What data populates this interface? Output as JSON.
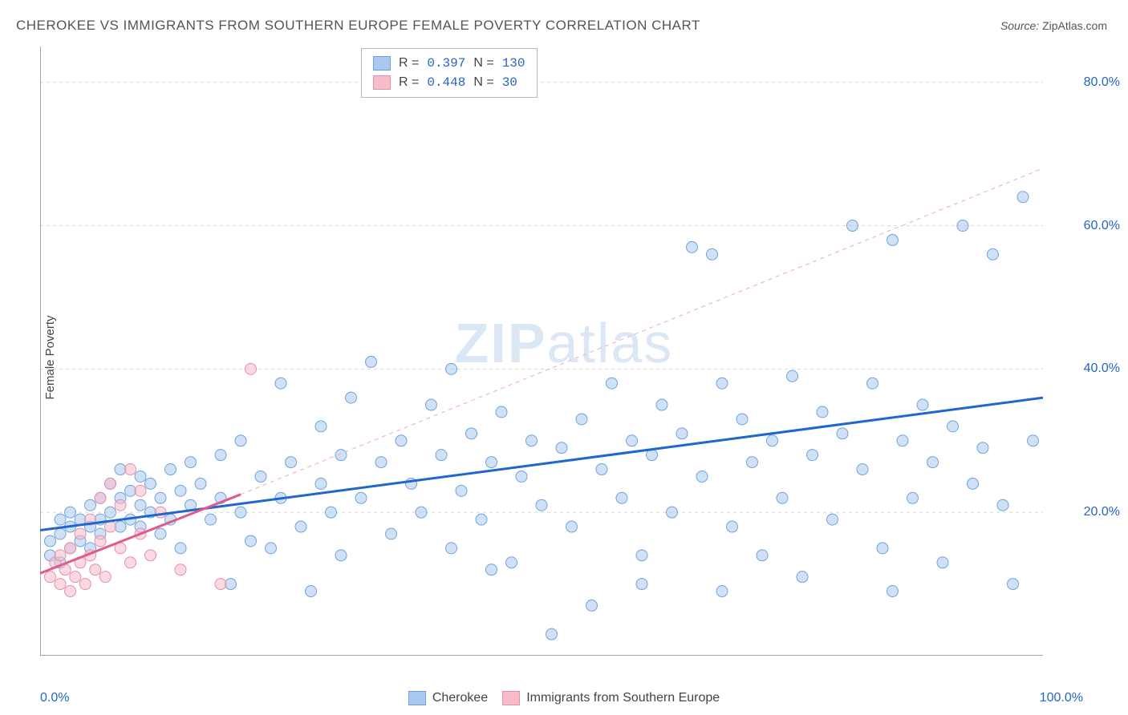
{
  "title": "CHEROKEE VS IMMIGRANTS FROM SOUTHERN EUROPE FEMALE POVERTY CORRELATION CHART",
  "source_label": "Source:",
  "source_value": "ZipAtlas.com",
  "ylabel": "Female Poverty",
  "watermark_a": "ZIP",
  "watermark_b": "atlas",
  "chart": {
    "type": "scatter",
    "xlim": [
      0,
      100
    ],
    "ylim": [
      0,
      85
    ],
    "x_ticks": [
      0,
      10,
      20,
      30,
      40,
      50,
      60,
      70,
      80,
      90,
      100
    ],
    "x_tick_labels_shown": {
      "0": "0.0%",
      "100": "100.0%"
    },
    "y_ticks": [
      20,
      40,
      60,
      80
    ],
    "y_tick_labels": [
      "20.0%",
      "40.0%",
      "60.0%",
      "80.0%"
    ],
    "grid_color": "#d8d8d8",
    "grid_dash": "4 4",
    "axis_color": "#888888",
    "background": "#ffffff",
    "marker_radius": 7,
    "marker_opacity": 0.55,
    "series": [
      {
        "name": "Cherokee",
        "color_fill": "#a9c8ef",
        "color_stroke": "#6fa3dd",
        "r_label": "R =",
        "r_value": "0.397",
        "n_label": "N =",
        "n_value": "130",
        "trend": {
          "x1": 0,
          "y1": 17.5,
          "x2": 100,
          "y2": 36,
          "color": "#1f66d0",
          "width": 3,
          "dash": ""
        },
        "trend_ext": null,
        "points": [
          [
            1,
            14
          ],
          [
            1,
            16
          ],
          [
            2,
            13
          ],
          [
            2,
            17
          ],
          [
            2,
            19
          ],
          [
            3,
            15
          ],
          [
            3,
            18
          ],
          [
            3,
            20
          ],
          [
            4,
            16
          ],
          [
            4,
            19
          ],
          [
            5,
            15
          ],
          [
            5,
            18
          ],
          [
            5,
            21
          ],
          [
            6,
            17
          ],
          [
            6,
            19
          ],
          [
            6,
            22
          ],
          [
            7,
            20
          ],
          [
            7,
            24
          ],
          [
            8,
            18
          ],
          [
            8,
            22
          ],
          [
            8,
            26
          ],
          [
            9,
            19
          ],
          [
            9,
            23
          ],
          [
            10,
            18
          ],
          [
            10,
            21
          ],
          [
            10,
            25
          ],
          [
            11,
            20
          ],
          [
            11,
            24
          ],
          [
            12,
            17
          ],
          [
            12,
            22
          ],
          [
            13,
            19
          ],
          [
            13,
            26
          ],
          [
            14,
            15
          ],
          [
            14,
            23
          ],
          [
            15,
            21
          ],
          [
            15,
            27
          ],
          [
            16,
            24
          ],
          [
            17,
            19
          ],
          [
            18,
            22
          ],
          [
            18,
            28
          ],
          [
            19,
            10
          ],
          [
            20,
            20
          ],
          [
            20,
            30
          ],
          [
            21,
            16
          ],
          [
            22,
            25
          ],
          [
            23,
            15
          ],
          [
            24,
            22
          ],
          [
            24,
            38
          ],
          [
            25,
            27
          ],
          [
            26,
            18
          ],
          [
            27,
            9
          ],
          [
            28,
            24
          ],
          [
            28,
            32
          ],
          [
            29,
            20
          ],
          [
            30,
            14
          ],
          [
            30,
            28
          ],
          [
            31,
            36
          ],
          [
            32,
            22
          ],
          [
            33,
            41
          ],
          [
            34,
            27
          ],
          [
            35,
            17
          ],
          [
            36,
            30
          ],
          [
            37,
            24
          ],
          [
            38,
            20
          ],
          [
            39,
            35
          ],
          [
            40,
            28
          ],
          [
            41,
            15
          ],
          [
            41,
            40
          ],
          [
            42,
            23
          ],
          [
            43,
            31
          ],
          [
            44,
            19
          ],
          [
            45,
            27
          ],
          [
            46,
            34
          ],
          [
            47,
            13
          ],
          [
            48,
            25
          ],
          [
            49,
            30
          ],
          [
            50,
            21
          ],
          [
            51,
            3
          ],
          [
            52,
            29
          ],
          [
            53,
            18
          ],
          [
            54,
            33
          ],
          [
            55,
            7
          ],
          [
            56,
            26
          ],
          [
            57,
            38
          ],
          [
            58,
            22
          ],
          [
            59,
            30
          ],
          [
            60,
            14
          ],
          [
            61,
            28
          ],
          [
            62,
            35
          ],
          [
            63,
            20
          ],
          [
            64,
            31
          ],
          [
            65,
            57
          ],
          [
            66,
            25
          ],
          [
            67,
            56
          ],
          [
            68,
            38
          ],
          [
            69,
            18
          ],
          [
            70,
            33
          ],
          [
            71,
            27
          ],
          [
            72,
            14
          ],
          [
            73,
            30
          ],
          [
            74,
            22
          ],
          [
            75,
            39
          ],
          [
            76,
            11
          ],
          [
            77,
            28
          ],
          [
            78,
            34
          ],
          [
            79,
            19
          ],
          [
            80,
            31
          ],
          [
            81,
            60
          ],
          [
            82,
            26
          ],
          [
            83,
            38
          ],
          [
            84,
            15
          ],
          [
            85,
            58
          ],
          [
            86,
            30
          ],
          [
            87,
            22
          ],
          [
            88,
            35
          ],
          [
            89,
            27
          ],
          [
            90,
            13
          ],
          [
            91,
            32
          ],
          [
            92,
            60
          ],
          [
            93,
            24
          ],
          [
            94,
            29
          ],
          [
            95,
            56
          ],
          [
            96,
            21
          ],
          [
            97,
            10
          ],
          [
            98,
            64
          ],
          [
            99,
            30
          ],
          [
            85,
            9
          ],
          [
            68,
            9
          ],
          [
            60,
            10
          ],
          [
            45,
            12
          ]
        ]
      },
      {
        "name": "Immigrants from Southern Europe",
        "color_fill": "#f6bcca",
        "color_stroke": "#e98fa6",
        "r_label": "R =",
        "r_value": "0.448",
        "n_label": "N =",
        "n_value": "30",
        "trend": {
          "x1": 0,
          "y1": 11.5,
          "x2": 20,
          "y2": 22.5,
          "color": "#e05a8a",
          "width": 3,
          "dash": ""
        },
        "trend_ext": {
          "x1": 20,
          "y1": 22.5,
          "x2": 100,
          "y2": 68,
          "color": "#f2b6c5",
          "width": 1.2,
          "dash": "5 5"
        },
        "points": [
          [
            1,
            11
          ],
          [
            1.5,
            13
          ],
          [
            2,
            10
          ],
          [
            2,
            14
          ],
          [
            2.5,
            12
          ],
          [
            3,
            9
          ],
          [
            3,
            15
          ],
          [
            3.5,
            11
          ],
          [
            4,
            13
          ],
          [
            4,
            17
          ],
          [
            4.5,
            10
          ],
          [
            5,
            14
          ],
          [
            5,
            19
          ],
          [
            5.5,
            12
          ],
          [
            6,
            16
          ],
          [
            6,
            22
          ],
          [
            6.5,
            11
          ],
          [
            7,
            18
          ],
          [
            7,
            24
          ],
          [
            8,
            15
          ],
          [
            8,
            21
          ],
          [
            9,
            13
          ],
          [
            9,
            26
          ],
          [
            10,
            17
          ],
          [
            10,
            23
          ],
          [
            11,
            14
          ],
          [
            12,
            20
          ],
          [
            14,
            12
          ],
          [
            18,
            10
          ],
          [
            21,
            40
          ]
        ]
      }
    ],
    "legend_bottom": [
      {
        "swatch": "#a9c8ef",
        "stroke": "#6fa3dd",
        "label": "Cherokee"
      },
      {
        "swatch": "#f6bcca",
        "stroke": "#e98fa6",
        "label": "Immigrants from Southern Europe"
      }
    ]
  }
}
